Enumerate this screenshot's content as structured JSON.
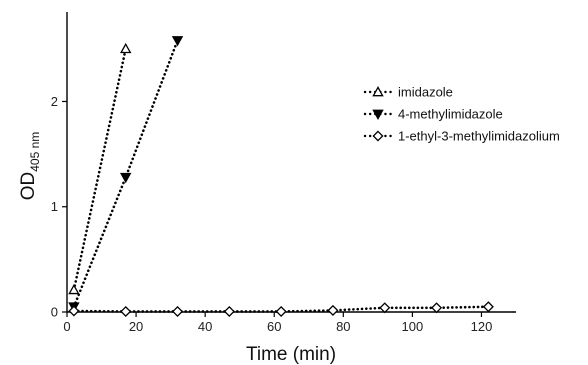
{
  "chart_data": {
    "type": "scatter",
    "xlabel": "Time (min)",
    "ylabel": {
      "main": "OD",
      "subscript": "405 nm"
    },
    "xlim": [
      0,
      130
    ],
    "ylim": [
      0,
      2.85
    ],
    "xticks": [
      0,
      20,
      40,
      60,
      80,
      100,
      120
    ],
    "yticks": [
      0,
      1,
      2
    ],
    "grid": false,
    "legend_position": "right",
    "series": [
      {
        "name": "imidazole",
        "marker": "triangle-up-open",
        "color": "#000000",
        "line_style": "dotted",
        "x": [
          2,
          17
        ],
        "y": [
          0.21,
          2.5
        ]
      },
      {
        "name": "4-methylimidazole",
        "marker": "triangle-down-filled",
        "color": "#000000",
        "line_style": "dotted",
        "x": [
          2,
          17,
          32
        ],
        "y": [
          0.05,
          1.28,
          2.58
        ]
      },
      {
        "name": "1-ethyl-3-methylimidazolium",
        "marker": "diamond-open",
        "color": "#000000",
        "line_style": "dotted",
        "x": [
          2,
          17,
          32,
          47,
          62,
          77,
          92,
          107,
          122
        ],
        "y": [
          0.01,
          0.005,
          0.005,
          0.005,
          0.005,
          0.015,
          0.04,
          0.04,
          0.05
        ]
      }
    ]
  }
}
